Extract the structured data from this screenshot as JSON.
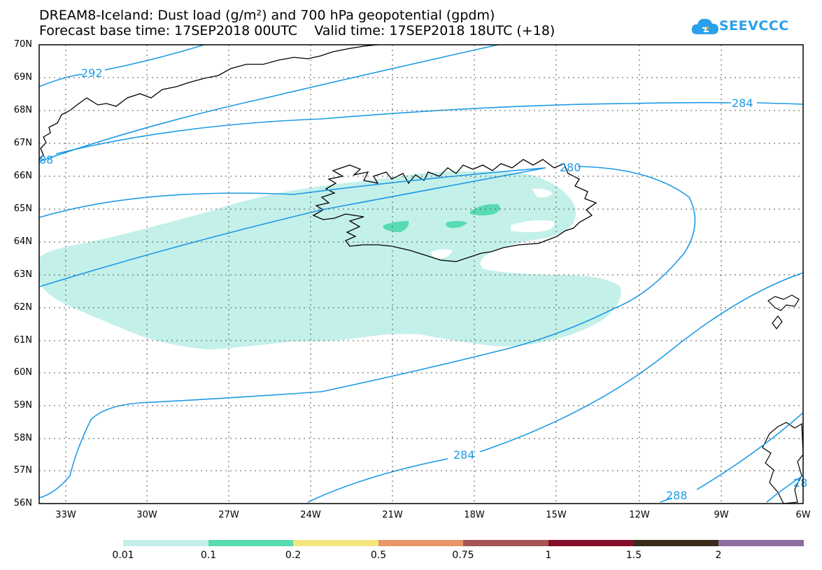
{
  "title": {
    "line1": "DREAM8-Iceland: Dust load (g/m²) and 700 hPa geopotential (gpdm)",
    "line2": "Forecast base time: 17SEP2018 00UTC    Valid time: 17SEP2018 18UTC (+18)"
  },
  "logo": {
    "text": "SEEVCCC",
    "icon": "cloud-icon",
    "color": "#2aa0ea"
  },
  "axes": {
    "lat_labels": [
      "70N",
      "69N",
      "68N",
      "67N",
      "66N",
      "65N",
      "64N",
      "63N",
      "62N",
      "61N",
      "60N",
      "59N",
      "58N",
      "57N",
      "56N"
    ],
    "lon_labels": [
      "33W",
      "30W",
      "27W",
      "24W",
      "21W",
      "18W",
      "15W",
      "12W",
      "9W",
      "6W"
    ]
  },
  "contours": {
    "color": "#1e9be6",
    "labels": [
      "292",
      "88",
      "284",
      "280",
      "284",
      "288",
      "28"
    ]
  },
  "dust": {
    "light_color": "#c4f0ea",
    "medium_color": "#58dbb2"
  },
  "legend": {
    "colors": [
      "#c4f0ea",
      "#58dbb2",
      "#f5e680",
      "#e8956a",
      "#a75454",
      "#850d2c",
      "#3a2a1a",
      "#8d6da0"
    ],
    "labels": [
      "0.01",
      "0.1",
      "0.2",
      "0.5",
      "0.75",
      "1",
      "1.5",
      "2"
    ]
  }
}
